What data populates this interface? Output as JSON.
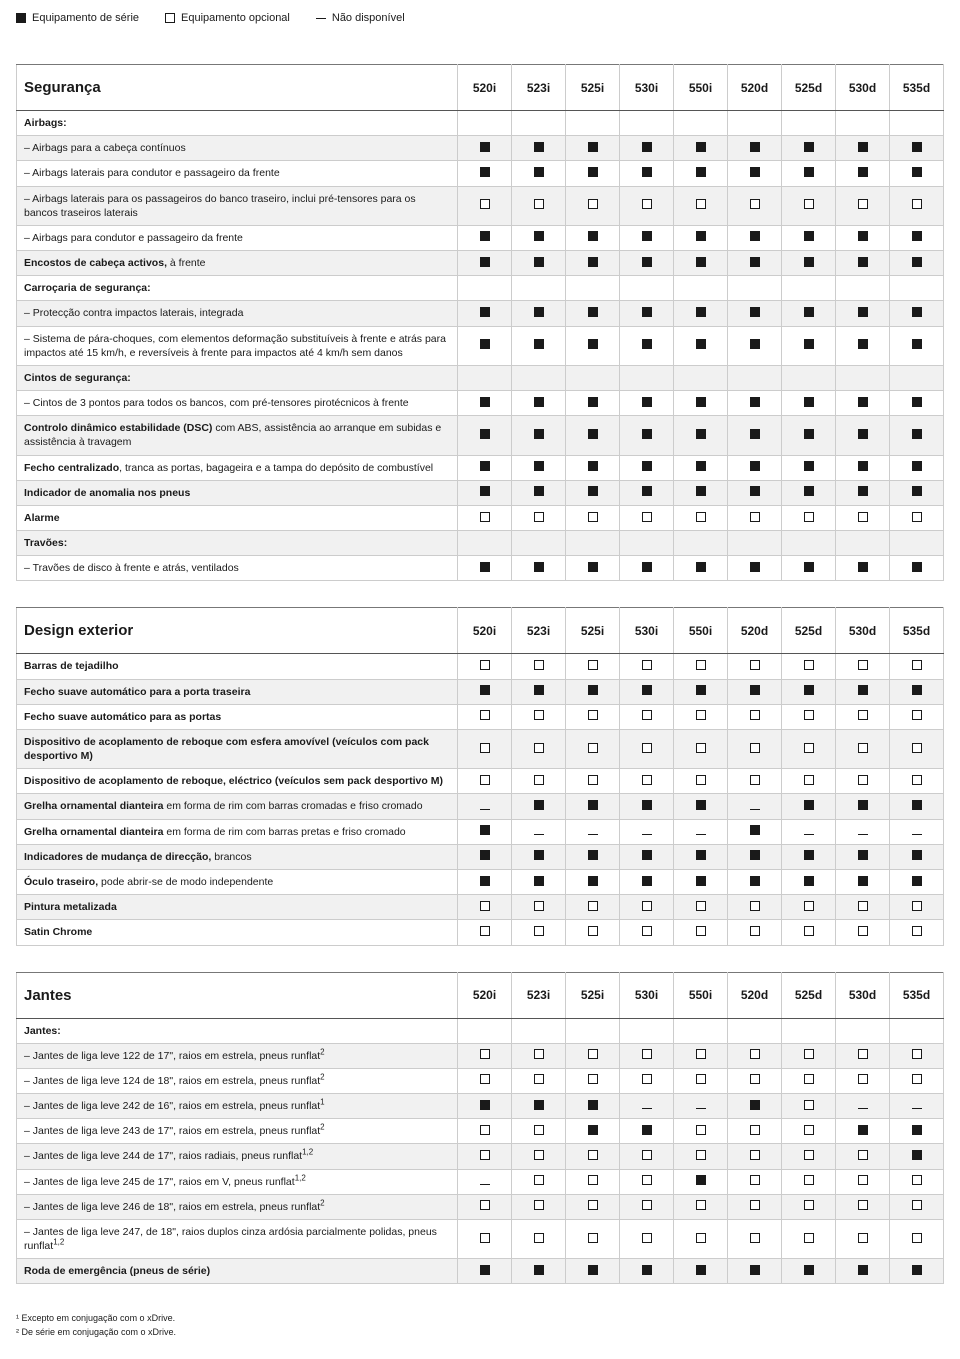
{
  "legend": {
    "std": "Equipamento de série",
    "opt": "Equipamento opcional",
    "na": "Não disponível"
  },
  "columns": [
    "520i",
    "523i",
    "525i",
    "530i",
    "550i",
    "520d",
    "525d",
    "530d",
    "535d"
  ],
  "tables": [
    {
      "heading": "Segurança",
      "rows": [
        {
          "label": "<b>Airbags:</b>",
          "cells": [
            "",
            "",
            "",
            "",
            "",
            "",
            "",
            "",
            ""
          ],
          "section": true
        },
        {
          "label": "– Airbags para a cabeça contínuos",
          "cells": [
            "s",
            "s",
            "s",
            "s",
            "s",
            "s",
            "s",
            "s",
            "s"
          ]
        },
        {
          "label": "– Airbags laterais para condutor e passageiro da frente",
          "cells": [
            "s",
            "s",
            "s",
            "s",
            "s",
            "s",
            "s",
            "s",
            "s"
          ]
        },
        {
          "label": "– Airbags laterais para os passageiros do banco traseiro, inclui pré-tensores para os bancos traseiros laterais",
          "cells": [
            "o",
            "o",
            "o",
            "o",
            "o",
            "o",
            "o",
            "o",
            "o"
          ]
        },
        {
          "label": "– Airbags para condutor e passageiro da frente",
          "cells": [
            "s",
            "s",
            "s",
            "s",
            "s",
            "s",
            "s",
            "s",
            "s"
          ]
        },
        {
          "label": "<b>Encostos de cabeça activos,</b> à frente",
          "cells": [
            "s",
            "s",
            "s",
            "s",
            "s",
            "s",
            "s",
            "s",
            "s"
          ]
        },
        {
          "label": "<b>Carroçaria de segurança:</b>",
          "cells": [
            "",
            "",
            "",
            "",
            "",
            "",
            "",
            "",
            ""
          ],
          "section": true
        },
        {
          "label": "– Protecção contra impactos laterais, integrada",
          "cells": [
            "s",
            "s",
            "s",
            "s",
            "s",
            "s",
            "s",
            "s",
            "s"
          ]
        },
        {
          "label": "– Sistema de pára-choques, com elementos deformação substituíveis à frente e atrás para impactos até 15 km/h, e reversíveis à frente para impactos até 4 km/h sem danos",
          "cells": [
            "s",
            "s",
            "s",
            "s",
            "s",
            "s",
            "s",
            "s",
            "s"
          ]
        },
        {
          "label": "<b>Cintos de segurança:</b>",
          "cells": [
            "",
            "",
            "",
            "",
            "",
            "",
            "",
            "",
            ""
          ],
          "section": true
        },
        {
          "label": "– Cintos de 3 pontos para todos os bancos, com pré-tensores pirotécnicos à frente",
          "cells": [
            "s",
            "s",
            "s",
            "s",
            "s",
            "s",
            "s",
            "s",
            "s"
          ]
        },
        {
          "label": "<b>Controlo dinâmico estabilidade (DSC)</b> com ABS, assistência ao arranque em subidas e assistência à travagem",
          "cells": [
            "s",
            "s",
            "s",
            "s",
            "s",
            "s",
            "s",
            "s",
            "s"
          ]
        },
        {
          "label": "<b>Fecho centralizado</b>, tranca as portas, bagageira e a tampa do depósito de combustível",
          "cells": [
            "s",
            "s",
            "s",
            "s",
            "s",
            "s",
            "s",
            "s",
            "s"
          ]
        },
        {
          "label": "<b>Indicador de anomalia nos pneus</b>",
          "cells": [
            "s",
            "s",
            "s",
            "s",
            "s",
            "s",
            "s",
            "s",
            "s"
          ]
        },
        {
          "label": "<b>Alarme</b>",
          "cells": [
            "o",
            "o",
            "o",
            "o",
            "o",
            "o",
            "o",
            "o",
            "o"
          ]
        },
        {
          "label": "<b>Travões:</b>",
          "cells": [
            "",
            "",
            "",
            "",
            "",
            "",
            "",
            "",
            ""
          ],
          "section": true
        },
        {
          "label": "– Travões de disco à frente e atrás, ventilados",
          "cells": [
            "s",
            "s",
            "s",
            "s",
            "s",
            "s",
            "s",
            "s",
            "s"
          ]
        }
      ]
    },
    {
      "heading": "Design exterior",
      "rows": [
        {
          "label": "<b>Barras de tejadilho</b>",
          "cells": [
            "o",
            "o",
            "o",
            "o",
            "o",
            "o",
            "o",
            "o",
            "o"
          ]
        },
        {
          "label": "<b>Fecho suave automático para a porta traseira</b>",
          "cells": [
            "s",
            "s",
            "s",
            "s",
            "s",
            "s",
            "s",
            "s",
            "s"
          ]
        },
        {
          "label": "<b>Fecho suave automático para as portas</b>",
          "cells": [
            "o",
            "o",
            "o",
            "o",
            "o",
            "o",
            "o",
            "o",
            "o"
          ]
        },
        {
          "label": "<b>Dispositivo de acoplamento de reboque com esfera amovível (veículos com pack desportivo M)</b>",
          "cells": [
            "o",
            "o",
            "o",
            "o",
            "o",
            "o",
            "o",
            "o",
            "o"
          ]
        },
        {
          "label": "<b>Dispositivo de acoplamento de reboque, eléctrico (veículos sem pack desportivo M)</b>",
          "cells": [
            "o",
            "o",
            "o",
            "o",
            "o",
            "o",
            "o",
            "o",
            "o"
          ]
        },
        {
          "label": "<b>Grelha ornamental dianteira</b> em forma de rim com barras cromadas e friso cromado",
          "cells": [
            "n",
            "s",
            "s",
            "s",
            "s",
            "n",
            "s",
            "s",
            "s"
          ]
        },
        {
          "label": "<b>Grelha ornamental dianteira</b> em forma de rim com barras pretas e friso cromado",
          "cells": [
            "s",
            "n",
            "n",
            "n",
            "n",
            "s",
            "n",
            "n",
            "n"
          ]
        },
        {
          "label": "<b>Indicadores de mudança de direcção,</b> brancos",
          "cells": [
            "s",
            "s",
            "s",
            "s",
            "s",
            "s",
            "s",
            "s",
            "s"
          ]
        },
        {
          "label": "<b>Óculo traseiro,</b> pode abrir-se de modo independente",
          "cells": [
            "s",
            "s",
            "s",
            "s",
            "s",
            "s",
            "s",
            "s",
            "s"
          ]
        },
        {
          "label": "<b>Pintura metalizada</b>",
          "cells": [
            "o",
            "o",
            "o",
            "o",
            "o",
            "o",
            "o",
            "o",
            "o"
          ]
        },
        {
          "label": "<b>Satin Chrome</b>",
          "cells": [
            "o",
            "o",
            "o",
            "o",
            "o",
            "o",
            "o",
            "o",
            "o"
          ]
        }
      ]
    },
    {
      "heading": "Jantes",
      "rows": [
        {
          "label": "<b>Jantes:</b>",
          "cells": [
            "",
            "",
            "",
            "",
            "",
            "",
            "",
            "",
            ""
          ],
          "section": true
        },
        {
          "label": "– Jantes de liga leve 122 de 17\", raios em estrela, pneus runflat<span class=\"sup\">2</span>",
          "cells": [
            "o",
            "o",
            "o",
            "o",
            "o",
            "o",
            "o",
            "o",
            "o"
          ]
        },
        {
          "label": "– Jantes de liga leve 124 de 18\", raios em estrela, pneus runflat<span class=\"sup\">2</span>",
          "cells": [
            "o",
            "o",
            "o",
            "o",
            "o",
            "o",
            "o",
            "o",
            "o"
          ]
        },
        {
          "label": "– Jantes de liga leve 242 de 16\", raios em estrela, pneus runflat<span class=\"sup\">1</span>",
          "cells": [
            "s",
            "s",
            "s",
            "n",
            "n",
            "s",
            "o",
            "n",
            "n"
          ]
        },
        {
          "label": "– Jantes de liga leve 243 de 17\", raios em estrela, pneus runflat<span class=\"sup\">2</span>",
          "cells": [
            "o",
            "o",
            "s",
            "s",
            "o",
            "o",
            "o",
            "s",
            "s"
          ]
        },
        {
          "label": "– Jantes de liga leve 244 de 17\", raios radiais, pneus runflat<span class=\"sup\">1,2</span>",
          "cells": [
            "o",
            "o",
            "o",
            "o",
            "o",
            "o",
            "o",
            "o",
            "s"
          ]
        },
        {
          "label": "– Jantes de liga leve 245 de 17\", raios em V, pneus runflat<span class=\"sup\">1,2</span>",
          "cells": [
            "n",
            "o",
            "o",
            "o",
            "s",
            "o",
            "o",
            "o",
            "o"
          ]
        },
        {
          "label": "– Jantes de liga leve 246 de 18\", raios em estrela, pneus runflat<span class=\"sup\">2</span>",
          "cells": [
            "o",
            "o",
            "o",
            "o",
            "o",
            "o",
            "o",
            "o",
            "o"
          ]
        },
        {
          "label": "– Jantes de liga leve 247, de 18\", raios duplos cinza ardósia parcialmente polidas, pneus runflat<span class=\"sup\">1,2</span>",
          "cells": [
            "o",
            "o",
            "o",
            "o",
            "o",
            "o",
            "o",
            "o",
            "o"
          ]
        },
        {
          "label": "<b>Roda de emergência (pneus de série)</b>",
          "cells": [
            "s",
            "s",
            "s",
            "s",
            "s",
            "s",
            "s",
            "s",
            "s"
          ]
        }
      ]
    }
  ],
  "footnotes": [
    "¹ Excepto em conjugação com o xDrive.",
    "² De série em conjugação com o xDrive."
  ]
}
